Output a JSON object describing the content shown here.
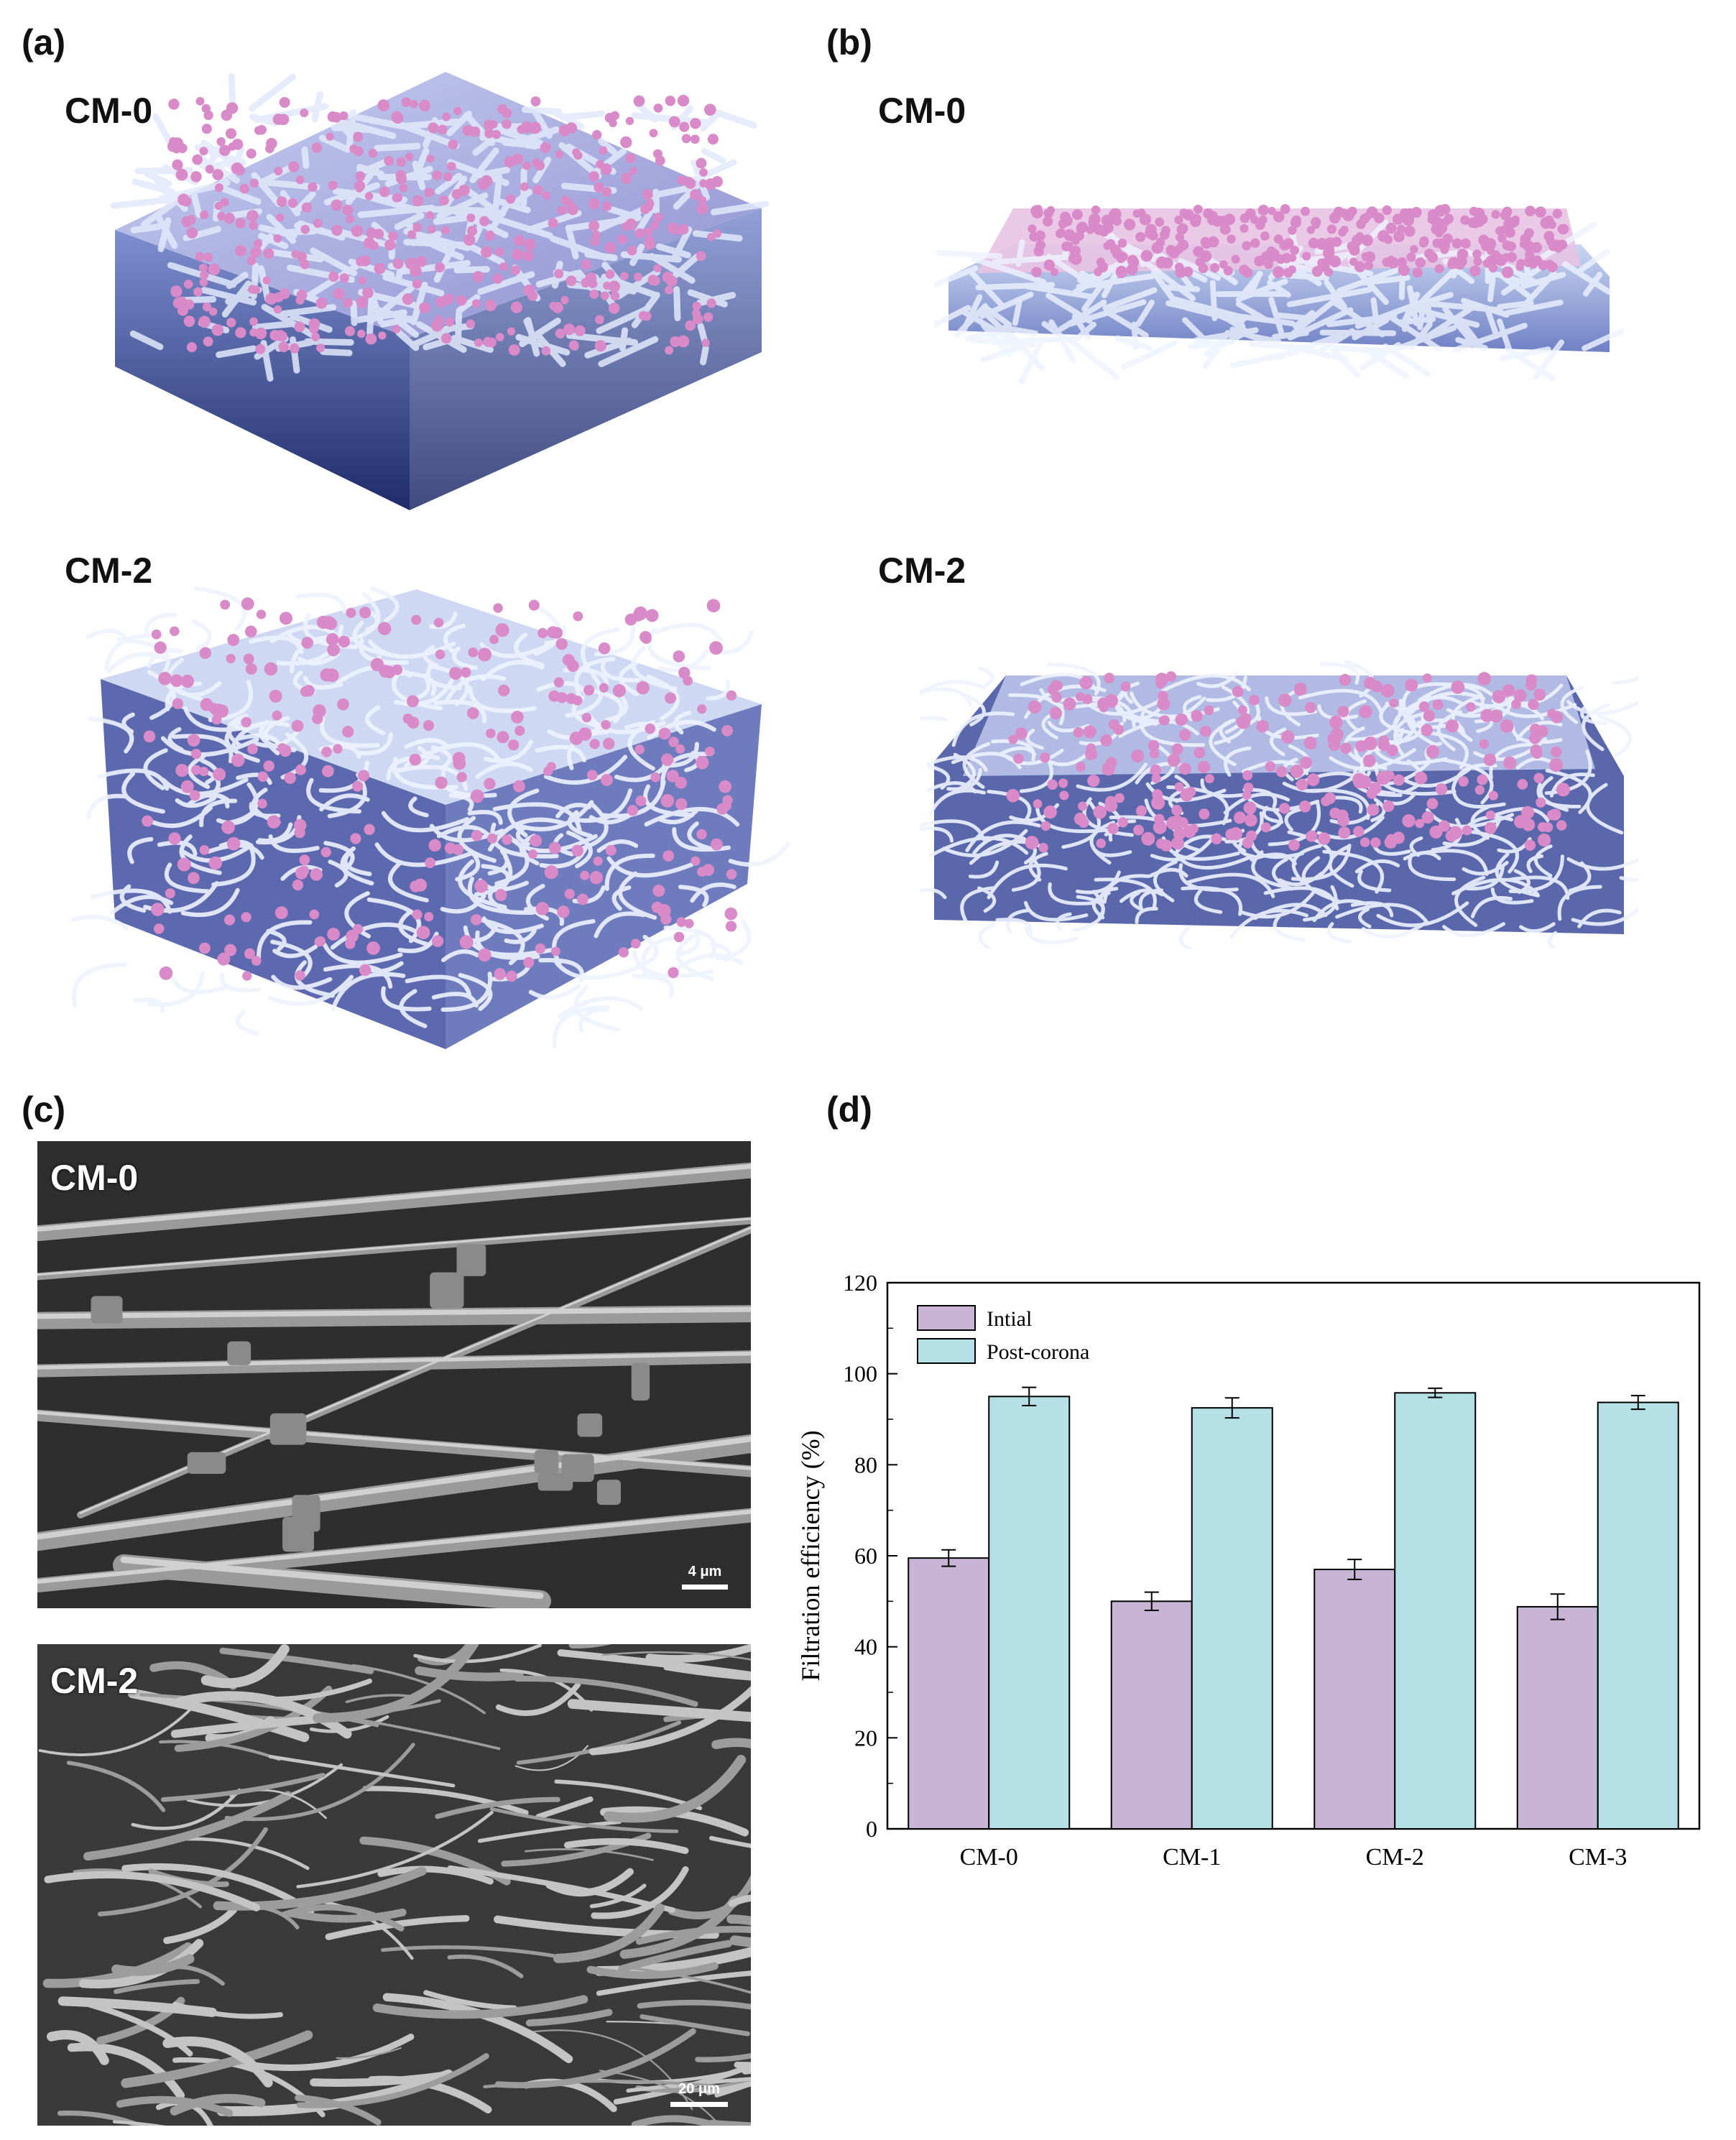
{
  "panels": {
    "a": {
      "letter": "(a)",
      "top_label": "CM-0",
      "bottom_label": "CM-2"
    },
    "b": {
      "letter": "(b)",
      "top_label": "CM-0",
      "bottom_label": "CM-2"
    },
    "c": {
      "letter": "(c)",
      "top_label": "CM-0",
      "bottom_label": "CM-2",
      "top_scale": "4 μm",
      "bottom_scale": "20 μm"
    },
    "d": {
      "letter": "(d)"
    }
  },
  "colors": {
    "fiber_light": "#c9d6f2",
    "fiber_dark": "#2f3e86",
    "particle": "#d98ac8",
    "bar_initial": "#c8b4d4",
    "bar_post": "#b4e0e6"
  },
  "chart_data": {
    "type": "bar",
    "categories": [
      "CM-0",
      "CM-1",
      "CM-2",
      "CM-3"
    ],
    "series": [
      {
        "name": "Intial",
        "values": [
          59.5,
          50.0,
          57.0,
          48.8
        ],
        "errors": [
          1.8,
          2.0,
          2.2,
          2.8
        ]
      },
      {
        "name": "Post-corona",
        "values": [
          95.0,
          92.5,
          95.8,
          93.7
        ],
        "errors": [
          2.0,
          2.2,
          1.0,
          1.5
        ]
      }
    ],
    "ylabel": "Filtration efficiency (%)",
    "xlabel": "",
    "ylim": [
      0,
      120
    ],
    "yticks": [
      0,
      20,
      40,
      60,
      80,
      100,
      120
    ],
    "legend_position": "top-left",
    "grid": false
  }
}
